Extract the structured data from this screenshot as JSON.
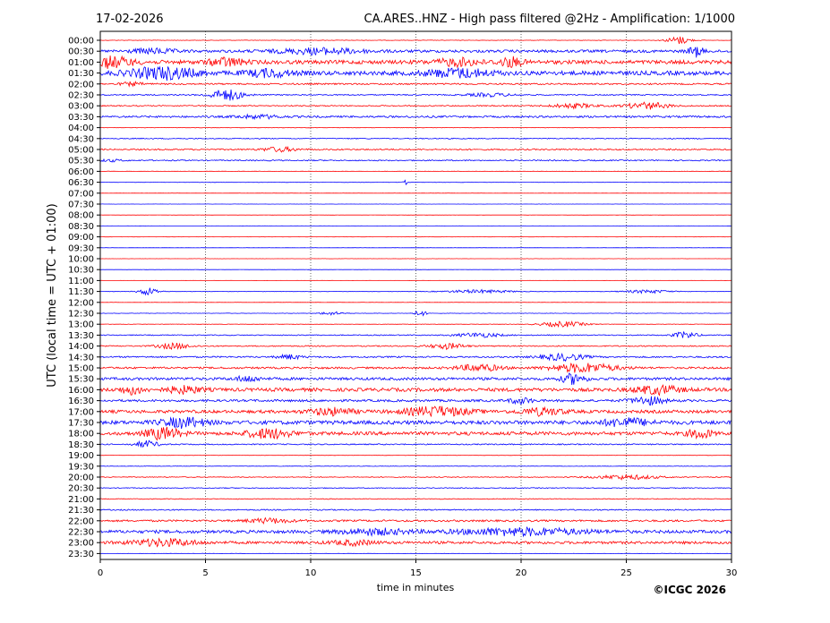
{
  "header": {
    "date": "17-02-2026",
    "title": "CA.ARES..HNZ - High pass filtered @2Hz - Amplification: 1/1000"
  },
  "footer": {
    "copyright": "©ICGC 2026"
  },
  "chart_data": {
    "type": "line",
    "title": "CA.ARES..HNZ - High pass filtered @2Hz - Amplification: 1/1000",
    "xlabel": "time in minutes",
    "ylabel": "UTC (local time = UTC + 01:00)",
    "xlim": [
      0,
      30
    ],
    "xticks": [
      0,
      5,
      10,
      15,
      20,
      25,
      30
    ],
    "grid": "vertical dotted",
    "colors": {
      "red": "#ff0000",
      "blue": "#0000ff"
    },
    "rows": [
      {
        "label": "00:00",
        "color": "red",
        "noise": 0.06,
        "bursts": [
          [
            27.5,
            1.0,
            0.7
          ]
        ]
      },
      {
        "label": "00:30",
        "color": "blue",
        "noise": 0.35,
        "bursts": [
          [
            28.3,
            0.6,
            0.9
          ],
          [
            10.5,
            4,
            0.5
          ],
          [
            2.5,
            2,
            0.4
          ]
        ]
      },
      {
        "label": "01:00",
        "color": "red",
        "noise": 0.5,
        "bursts": [
          [
            0.5,
            2,
            0.9
          ],
          [
            6,
            1.5,
            0.7
          ],
          [
            17,
            2,
            0.6
          ],
          [
            19.5,
            1,
            0.8
          ]
        ]
      },
      {
        "label": "01:30",
        "color": "blue",
        "noise": 0.55,
        "bursts": [
          [
            3,
            3,
            1.0
          ],
          [
            8,
            2,
            0.6
          ],
          [
            17,
            3,
            0.7
          ]
        ]
      },
      {
        "label": "02:00",
        "color": "red",
        "noise": 0.2,
        "bursts": [
          [
            1.5,
            1,
            0.3
          ]
        ]
      },
      {
        "label": "02:30",
        "color": "blue",
        "noise": 0.15,
        "bursts": [
          [
            6,
            1.5,
            1.0
          ],
          [
            18.5,
            2,
            0.3
          ]
        ]
      },
      {
        "label": "03:00",
        "color": "red",
        "noise": 0.15,
        "bursts": [
          [
            26,
            2,
            0.6
          ],
          [
            22.5,
            2,
            0.4
          ]
        ]
      },
      {
        "label": "03:30",
        "color": "blue",
        "noise": 0.25,
        "bursts": [
          [
            7.5,
            2,
            0.3
          ]
        ]
      },
      {
        "label": "04:00",
        "color": "red",
        "noise": 0.05,
        "bursts": []
      },
      {
        "label": "04:30",
        "color": "blue",
        "noise": 0.12,
        "bursts": []
      },
      {
        "label": "05:00",
        "color": "red",
        "noise": 0.18,
        "bursts": [
          [
            8.5,
            1.5,
            0.4
          ]
        ]
      },
      {
        "label": "05:30",
        "color": "blue",
        "noise": 0.15,
        "bursts": [
          [
            0.5,
            1,
            0.2
          ]
        ]
      },
      {
        "label": "06:00",
        "color": "red",
        "noise": 0.05,
        "bursts": []
      },
      {
        "label": "06:30",
        "color": "blue",
        "noise": 0.05,
        "bursts": [
          [
            14.5,
            0.1,
            0.4
          ]
        ]
      },
      {
        "label": "07:00",
        "color": "red",
        "noise": 0.02,
        "bursts": []
      },
      {
        "label": "07:30",
        "color": "blue",
        "noise": 0.02,
        "bursts": []
      },
      {
        "label": "08:00",
        "color": "red",
        "noise": 0.02,
        "bursts": []
      },
      {
        "label": "08:30",
        "color": "blue",
        "noise": 0.02,
        "bursts": []
      },
      {
        "label": "09:00",
        "color": "red",
        "noise": 0.02,
        "bursts": []
      },
      {
        "label": "09:30",
        "color": "blue",
        "noise": 0.02,
        "bursts": []
      },
      {
        "label": "10:00",
        "color": "red",
        "noise": 0.02,
        "bursts": []
      },
      {
        "label": "10:30",
        "color": "blue",
        "noise": 0.02,
        "bursts": []
      },
      {
        "label": "11:00",
        "color": "red",
        "noise": 0.02,
        "bursts": []
      },
      {
        "label": "11:30",
        "color": "blue",
        "noise": 0.06,
        "bursts": [
          [
            2.3,
            0.8,
            0.7
          ],
          [
            18,
            3,
            0.3
          ],
          [
            26,
            2,
            0.3
          ]
        ]
      },
      {
        "label": "12:00",
        "color": "red",
        "noise": 0.03,
        "bursts": []
      },
      {
        "label": "12:30",
        "color": "blue",
        "noise": 0.05,
        "bursts": [
          [
            15.2,
            0.5,
            0.5
          ],
          [
            11,
            1,
            0.3
          ]
        ]
      },
      {
        "label": "13:00",
        "color": "red",
        "noise": 0.05,
        "bursts": [
          [
            22,
            2,
            0.5
          ]
        ]
      },
      {
        "label": "13:30",
        "color": "blue",
        "noise": 0.12,
        "bursts": [
          [
            27.8,
            1,
            0.6
          ],
          [
            18,
            2,
            0.4
          ]
        ]
      },
      {
        "label": "14:00",
        "color": "red",
        "noise": 0.15,
        "bursts": [
          [
            3.5,
            1.5,
            0.5
          ],
          [
            16.5,
            1.5,
            0.5
          ]
        ]
      },
      {
        "label": "14:30",
        "color": "blue",
        "noise": 0.2,
        "bursts": [
          [
            22,
            2,
            0.6
          ],
          [
            9,
            1,
            0.4
          ]
        ]
      },
      {
        "label": "15:00",
        "color": "red",
        "noise": 0.25,
        "bursts": [
          [
            23,
            3,
            0.8
          ],
          [
            18,
            2,
            0.6
          ]
        ]
      },
      {
        "label": "15:30",
        "color": "blue",
        "noise": 0.35,
        "bursts": [
          [
            22.5,
            1,
            0.9
          ],
          [
            7,
            1,
            0.5
          ]
        ]
      },
      {
        "label": "16:00",
        "color": "red",
        "noise": 0.45,
        "bursts": [
          [
            1.5,
            1,
            0.7
          ],
          [
            4,
            1.5,
            0.6
          ],
          [
            26.5,
            2,
            0.7
          ]
        ]
      },
      {
        "label": "16:30",
        "color": "blue",
        "noise": 0.3,
        "bursts": [
          [
            26,
            1.5,
            0.7
          ],
          [
            20,
            1,
            0.5
          ]
        ]
      },
      {
        "label": "17:00",
        "color": "red",
        "noise": 0.4,
        "bursts": [
          [
            16,
            3,
            0.8
          ],
          [
            11,
            2,
            0.6
          ],
          [
            21,
            2,
            0.6
          ]
        ]
      },
      {
        "label": "17:30",
        "color": "blue",
        "noise": 0.5,
        "bursts": [
          [
            4,
            2,
            0.8
          ],
          [
            25,
            2,
            0.7
          ]
        ]
      },
      {
        "label": "18:00",
        "color": "red",
        "noise": 0.45,
        "bursts": [
          [
            3,
            1.5,
            1.0
          ],
          [
            8,
            2,
            0.8
          ],
          [
            28.5,
            1,
            0.8
          ]
        ]
      },
      {
        "label": "18:30",
        "color": "blue",
        "noise": 0.15,
        "bursts": [
          [
            2.2,
            1,
            0.6
          ]
        ]
      },
      {
        "label": "19:00",
        "color": "red",
        "noise": 0.05,
        "bursts": []
      },
      {
        "label": "19:30",
        "color": "blue",
        "noise": 0.06,
        "bursts": []
      },
      {
        "label": "20:00",
        "color": "red",
        "noise": 0.1,
        "bursts": [
          [
            25,
            3,
            0.4
          ]
        ]
      },
      {
        "label": "20:30",
        "color": "blue",
        "noise": 0.1,
        "bursts": []
      },
      {
        "label": "21:00",
        "color": "red",
        "noise": 0.1,
        "bursts": []
      },
      {
        "label": "21:30",
        "color": "blue",
        "noise": 0.15,
        "bursts": []
      },
      {
        "label": "22:00",
        "color": "red",
        "noise": 0.25,
        "bursts": [
          [
            8,
            2,
            0.4
          ]
        ]
      },
      {
        "label": "22:30",
        "color": "blue",
        "noise": 0.4,
        "bursts": [
          [
            20,
            6,
            0.6
          ],
          [
            13,
            3,
            0.5
          ]
        ]
      },
      {
        "label": "23:00",
        "color": "red",
        "noise": 0.35,
        "bursts": [
          [
            3,
            3,
            0.6
          ],
          [
            12,
            2,
            0.4
          ]
        ]
      },
      {
        "label": "23:30",
        "color": "blue",
        "noise": 0.04,
        "bursts": []
      }
    ]
  }
}
